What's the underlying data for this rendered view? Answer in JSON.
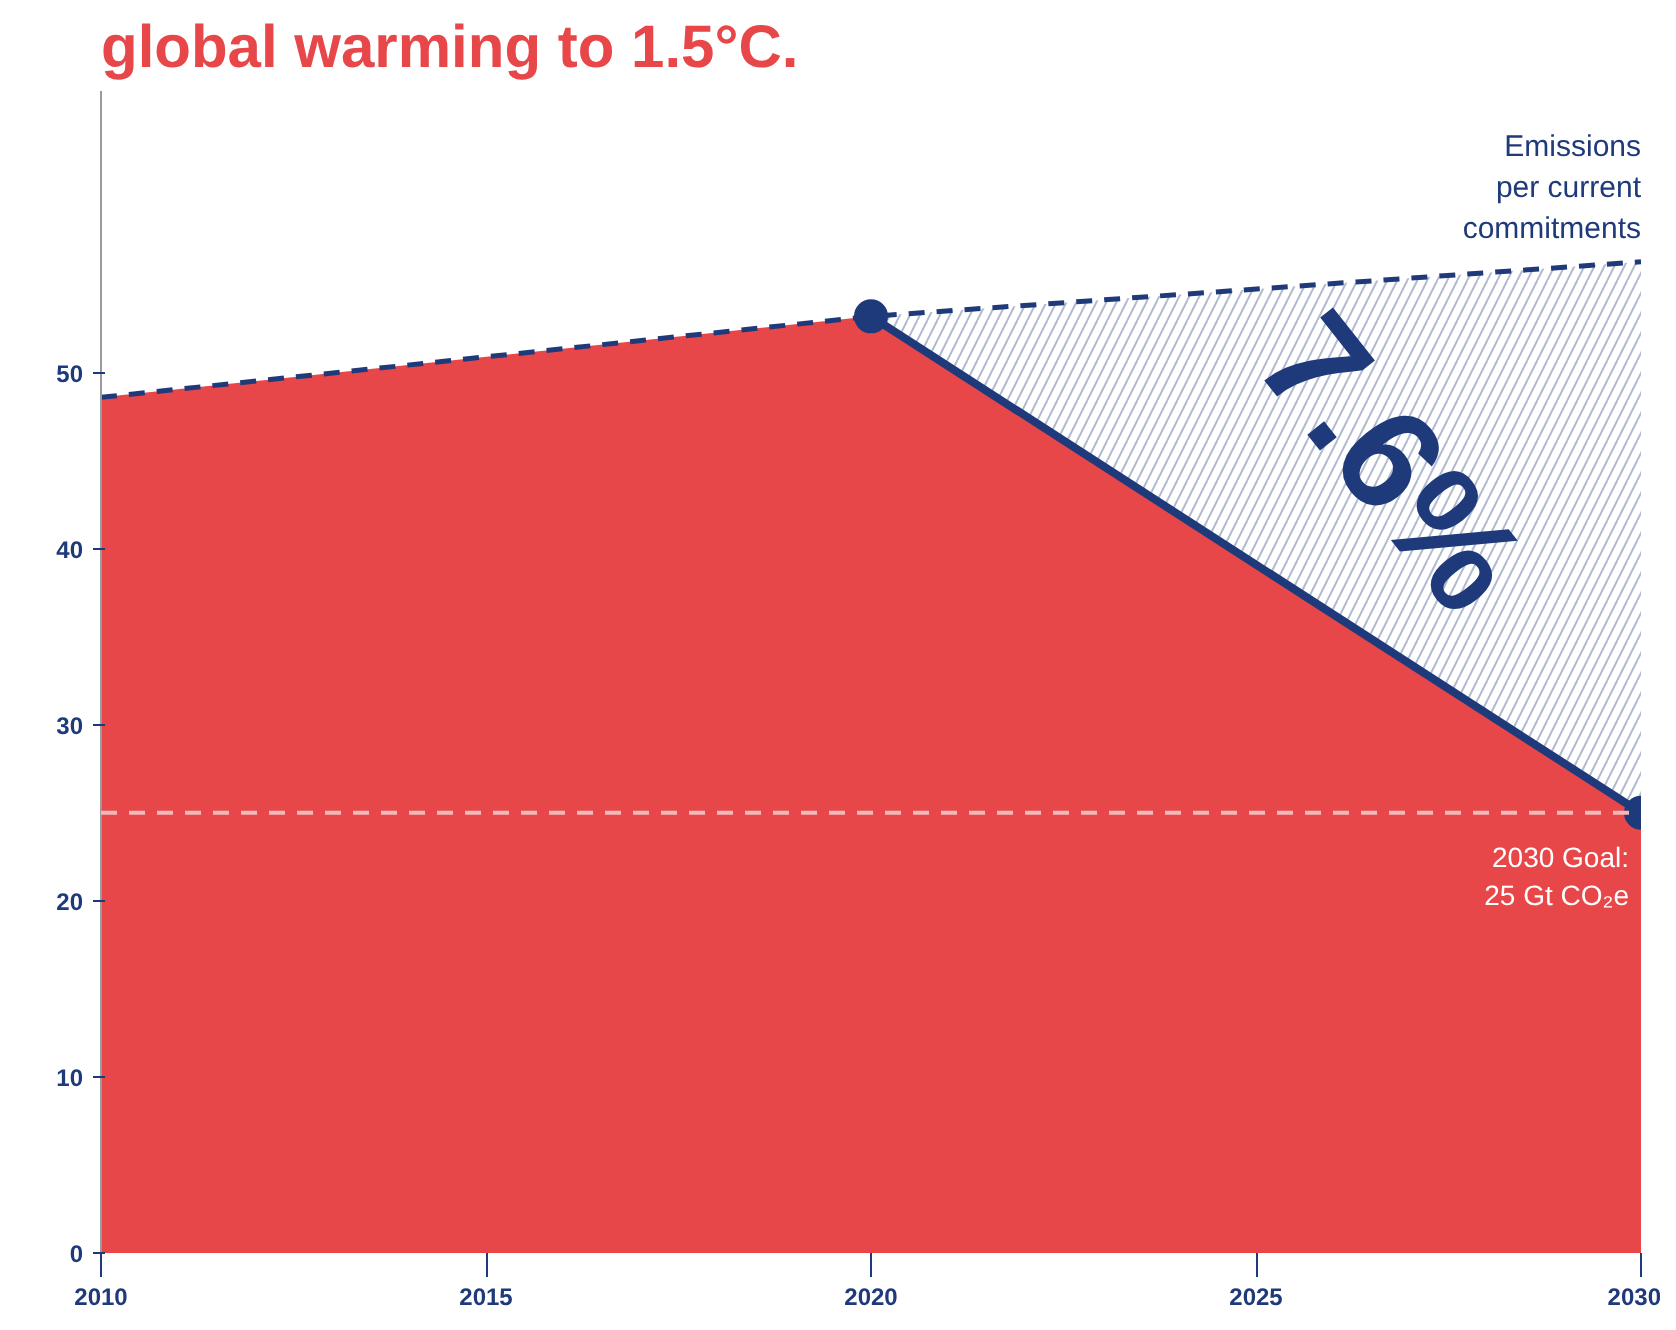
{
  "chart_data": {
    "type": "area",
    "title": "global warming to 1.5°C.",
    "x": [
      2010,
      2020,
      2030
    ],
    "series": [
      {
        "color": "#e8474a",
        "values": [
          48.6,
          53.2,
          25
        ]
      },
      {
        "type": "line",
        "name": "Emissions per current commitments",
        "color": "#1f3a7a",
        "line_style": "dashed",
        "marker": "none",
        "values": [
          48.6,
          53.2,
          56.3
        ],
        "lower": [
          null,
          53.2,
          25
        ],
        "upper": [
          null,
          53.2,
          56.3
        ]
      },
      {
        "type": "line",
        "color": "#1f3a7a",
        "line_style": "solid",
        "marker": "circle",
        "x": [
          2020,
          2030
        ],
        "values": [
          53.2,
          25
        ]
      }
    ],
    "xlim": [
      2010,
      2030
    ],
    "xticks": [
      2010,
      2015,
      2020,
      2025,
      2030
    ],
    "ylim": [
      0,
      66
    ],
    "yticks": [
      0,
      10,
      20,
      30,
      40,
      50
    ],
    "ref_lines": [
      {
        "axis": "y",
        "value": 25,
        "label": "2030 Goal: 25 Gt CO₂e",
        "color": "#f4b8b8",
        "line_style": "dashed"
      }
    ],
    "annotations": [
      "7.6%"
    ]
  }
}
